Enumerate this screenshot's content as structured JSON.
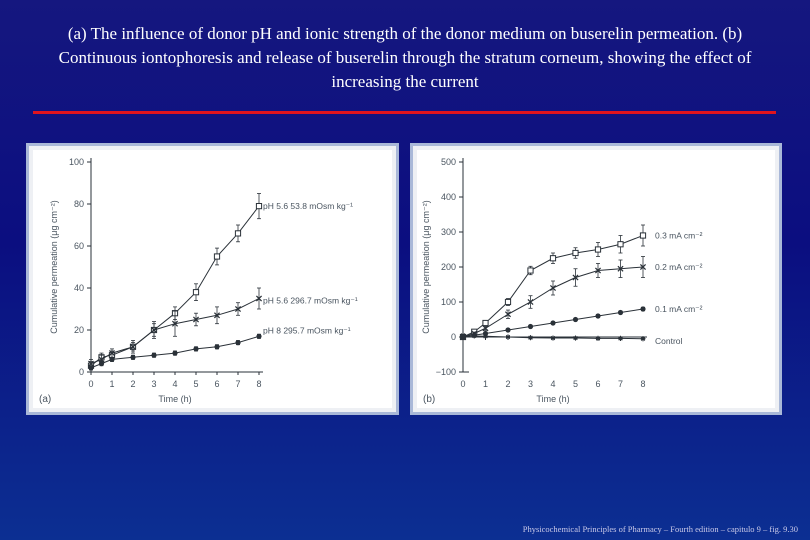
{
  "title": "(a) The influence of donor pH and ionic strength of the donor medium on buserelin permeation. (b) Continuous iontophoresis and release of buserelin through the stratum corneum, showing the effect of increasing the current",
  "footer": "Physicochemical Principles of Pharmacy – Fourth edition – capitulo 9 – fig. 9.30",
  "colors": {
    "background": "#0b0e80",
    "rule": "#e0141e",
    "panel_border": "#a9b8d8",
    "plot_ink": "#2a3138"
  },
  "chart_data": [
    {
      "type": "line",
      "panel_label": "(a)",
      "xlabel": "Time (h)",
      "ylabel": "Cumulative permeation (μg cm⁻²)",
      "xlim": [
        0,
        8
      ],
      "ylim": [
        0,
        100
      ],
      "xticks": [
        "0",
        "1",
        "2",
        "3",
        "4",
        "5",
        "6",
        "7",
        "8"
      ],
      "yticks": [
        "0",
        "20",
        "40",
        "60",
        "80",
        "100"
      ],
      "series": [
        {
          "name": "pH 5.6 53.8 mOsm kg⁻¹",
          "marker": "open-square",
          "x": [
            0,
            0.5,
            1,
            2,
            3,
            4,
            5,
            6,
            7,
            8
          ],
          "y": [
            3,
            7,
            8,
            12,
            20,
            28,
            38,
            55,
            66,
            79
          ],
          "err": [
            2,
            2,
            2,
            2,
            3,
            3,
            4,
            4,
            4,
            6
          ]
        },
        {
          "name": "pH 5.6 296.7 mOsm kg⁻¹",
          "marker": "cross",
          "x": [
            0,
            0.5,
            1,
            2,
            3,
            4,
            5,
            6,
            7,
            8
          ],
          "y": [
            4,
            6,
            9,
            12,
            20,
            23,
            25,
            27,
            30,
            35
          ],
          "err": [
            2,
            2,
            2,
            3,
            4,
            6,
            3,
            4,
            3,
            5
          ]
        },
        {
          "name": "pH 8 295.7 mOsm kg⁻¹",
          "marker": "filled-circle",
          "x": [
            0,
            0.5,
            1,
            2,
            3,
            4,
            5,
            6,
            7,
            8
          ],
          "y": [
            2,
            4,
            6,
            7,
            8,
            9,
            11,
            12,
            14,
            17
          ],
          "err": [
            1,
            1,
            1,
            1,
            1,
            1,
            1,
            1,
            1,
            1
          ]
        }
      ]
    },
    {
      "type": "line",
      "panel_label": "(b)",
      "xlabel": "Time (h)",
      "ylabel": "Cumulative permeation (μg cm⁻²)",
      "xlim": [
        0,
        8
      ],
      "ylim": [
        -100,
        500
      ],
      "xticks": [
        "0",
        "1",
        "2",
        "3",
        "4",
        "5",
        "6",
        "7",
        "8"
      ],
      "yticks": [
        "−100",
        "0",
        "100",
        "200",
        "300",
        "400",
        "500"
      ],
      "series": [
        {
          "name": "0.3 mA cm⁻²",
          "marker": "open-square",
          "x": [
            0,
            0.5,
            1,
            2,
            3,
            4,
            5,
            6,
            7,
            8
          ],
          "y": [
            0,
            15,
            40,
            100,
            190,
            225,
            240,
            250,
            265,
            290
          ],
          "err": [
            3,
            4,
            6,
            10,
            12,
            15,
            15,
            20,
            25,
            30
          ]
        },
        {
          "name": "0.2 mA cm⁻²",
          "marker": "cross",
          "x": [
            0,
            0.5,
            1,
            2,
            3,
            4,
            5,
            6,
            7,
            8
          ],
          "y": [
            0,
            10,
            25,
            65,
            100,
            140,
            170,
            190,
            195,
            200
          ],
          "err": [
            3,
            4,
            6,
            12,
            18,
            20,
            25,
            20,
            25,
            30
          ]
        },
        {
          "name": "0.1 mA cm⁻²",
          "marker": "filled-circle",
          "x": [
            0,
            0.5,
            1,
            2,
            3,
            4,
            5,
            6,
            7,
            8
          ],
          "y": [
            0,
            5,
            10,
            20,
            30,
            40,
            50,
            60,
            70,
            80
          ],
          "err": [
            2,
            2,
            2,
            3,
            3,
            3,
            3,
            4,
            4,
            5
          ]
        },
        {
          "name": "Control",
          "marker": "star",
          "x": [
            0,
            0.5,
            1,
            2,
            3,
            4,
            5,
            6,
            7,
            8
          ],
          "y": [
            5,
            3,
            2,
            0,
            -2,
            -3,
            -3,
            -4,
            -4,
            -5
          ],
          "err": [
            2,
            2,
            2,
            2,
            2,
            2,
            2,
            2,
            2,
            2
          ]
        }
      ]
    }
  ]
}
